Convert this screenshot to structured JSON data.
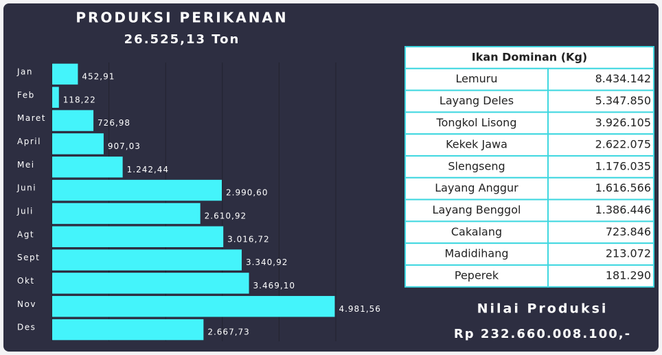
{
  "chart_data": {
    "type": "bar",
    "orientation": "horizontal",
    "title": "PRODUKSI PERIKANAN",
    "subtitle": "26.525,13 Ton",
    "categories": [
      "Jan",
      "Feb",
      "Maret",
      "April",
      "Mei",
      "Juni",
      "Juli",
      "Agt",
      "Sept",
      "Okt",
      "Nov",
      "Des"
    ],
    "values": [
      452.91,
      118.22,
      726.98,
      907.03,
      1242.44,
      2990.6,
      2610.92,
      3016.72,
      3340.92,
      3469.1,
      4981.56,
      2667.73
    ],
    "value_labels": [
      "452,91",
      "118,22",
      "726,98",
      "907,03",
      "1.242,44",
      "2.990,60",
      "2.610,92",
      "3.016,72",
      "3.340,92",
      "3.469,10",
      "4.981,56",
      "2.667,73"
    ],
    "color": "#44f4fb",
    "xlim": [
      0,
      5000
    ],
    "xticks": [
      0,
      1000,
      2000,
      3000,
      4000,
      5000
    ],
    "grid": true
  },
  "table": {
    "header": "Ikan Dominan (Kg)",
    "rows": [
      [
        "Lemuru",
        "8.434.142"
      ],
      [
        "Layang Deles",
        "5.347.850"
      ],
      [
        "Tongkol Lisong",
        "3.926.105"
      ],
      [
        "Kekek Jawa",
        "2.622.075"
      ],
      [
        "Slengseng",
        "1.176.035"
      ],
      [
        "Layang Anggur",
        "1.616.566"
      ],
      [
        "Layang Benggol",
        "1.386.446"
      ],
      [
        "Cakalang",
        "723.846"
      ],
      [
        "Madidihang",
        "213.072"
      ],
      [
        "Peperek",
        "181.290"
      ]
    ]
  },
  "summary": {
    "label": "Nilai Produksi",
    "value": "Rp 232.660.008.100,-"
  }
}
